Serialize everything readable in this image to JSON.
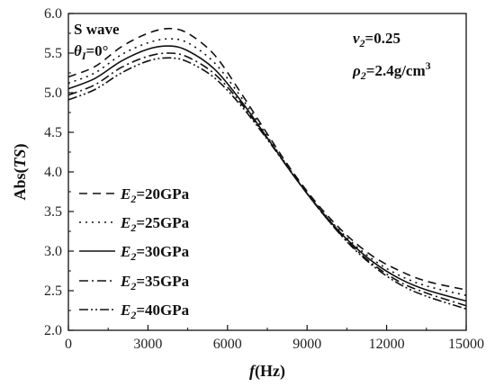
{
  "chart_data": {
    "type": "line",
    "xlabel": {
      "italic": "f",
      "rest": "(Hz)"
    },
    "ylabel": {
      "prefix": "Abs(",
      "italic": "TS",
      "suffix": ")"
    },
    "xlim": [
      0,
      15000
    ],
    "ylim": [
      2.0,
      6.0
    ],
    "x_ticks": [
      "0",
      "3000",
      "6000",
      "9000",
      "12000",
      "15000"
    ],
    "y_ticks": [
      "2.0",
      "2.5",
      "3.0",
      "3.5",
      "4.0",
      "4.5",
      "5.0",
      "5.5",
      "6.0"
    ],
    "grid": false,
    "legend_position": "bottom-left",
    "annotations": {
      "wave": "S wave",
      "theta": {
        "symbol": "θ",
        "sub": "I",
        "value": "=0°"
      },
      "nu": {
        "symbol": "ν",
        "sub": "2",
        "value": "=0.25"
      },
      "rho": {
        "symbol": "ρ",
        "sub": "2",
        "value": "=2.4g/cm",
        "sup": "3"
      }
    },
    "x": [
      0,
      1000,
      2000,
      3000,
      3800,
      4500,
      5500,
      6500,
      7500,
      8500,
      9500,
      10500,
      11500,
      12500,
      13500,
      15000
    ],
    "series": [
      {
        "name": {
          "symbol": "E",
          "sub": "2",
          "value": "=20GPa"
        },
        "dash": "9,6",
        "values": [
          5.2,
          5.33,
          5.58,
          5.75,
          5.81,
          5.75,
          5.48,
          5.0,
          4.48,
          3.98,
          3.55,
          3.2,
          2.93,
          2.75,
          2.62,
          2.51
        ]
      },
      {
        "name": {
          "symbol": "E",
          "sub": "2",
          "value": "=25GPa"
        },
        "dash": "2,5",
        "values": [
          5.12,
          5.25,
          5.48,
          5.63,
          5.68,
          5.63,
          5.38,
          4.95,
          4.45,
          3.96,
          3.53,
          3.17,
          2.89,
          2.69,
          2.56,
          2.44
        ]
      },
      {
        "name": {
          "symbol": "E",
          "sub": "2",
          "value": "=30GPa"
        },
        "dash": "",
        "values": [
          5.05,
          5.18,
          5.4,
          5.55,
          5.59,
          5.53,
          5.3,
          4.9,
          4.43,
          3.95,
          3.52,
          3.15,
          2.86,
          2.65,
          2.51,
          2.37
        ]
      },
      {
        "name": {
          "symbol": "E",
          "sub": "2",
          "value": "=35GPa"
        },
        "dash": "10,4,2,4",
        "values": [
          4.97,
          5.1,
          5.32,
          5.46,
          5.5,
          5.45,
          5.24,
          4.87,
          4.42,
          3.95,
          3.51,
          3.13,
          2.83,
          2.61,
          2.47,
          2.31
        ]
      },
      {
        "name": {
          "symbol": "E",
          "sub": "2",
          "value": "=40GPa"
        },
        "dash": "10,3,2,3,2,3",
        "values": [
          4.91,
          5.04,
          5.25,
          5.4,
          5.44,
          5.39,
          5.19,
          4.84,
          4.41,
          3.95,
          3.51,
          3.12,
          2.81,
          2.58,
          2.43,
          2.27
        ]
      }
    ]
  }
}
